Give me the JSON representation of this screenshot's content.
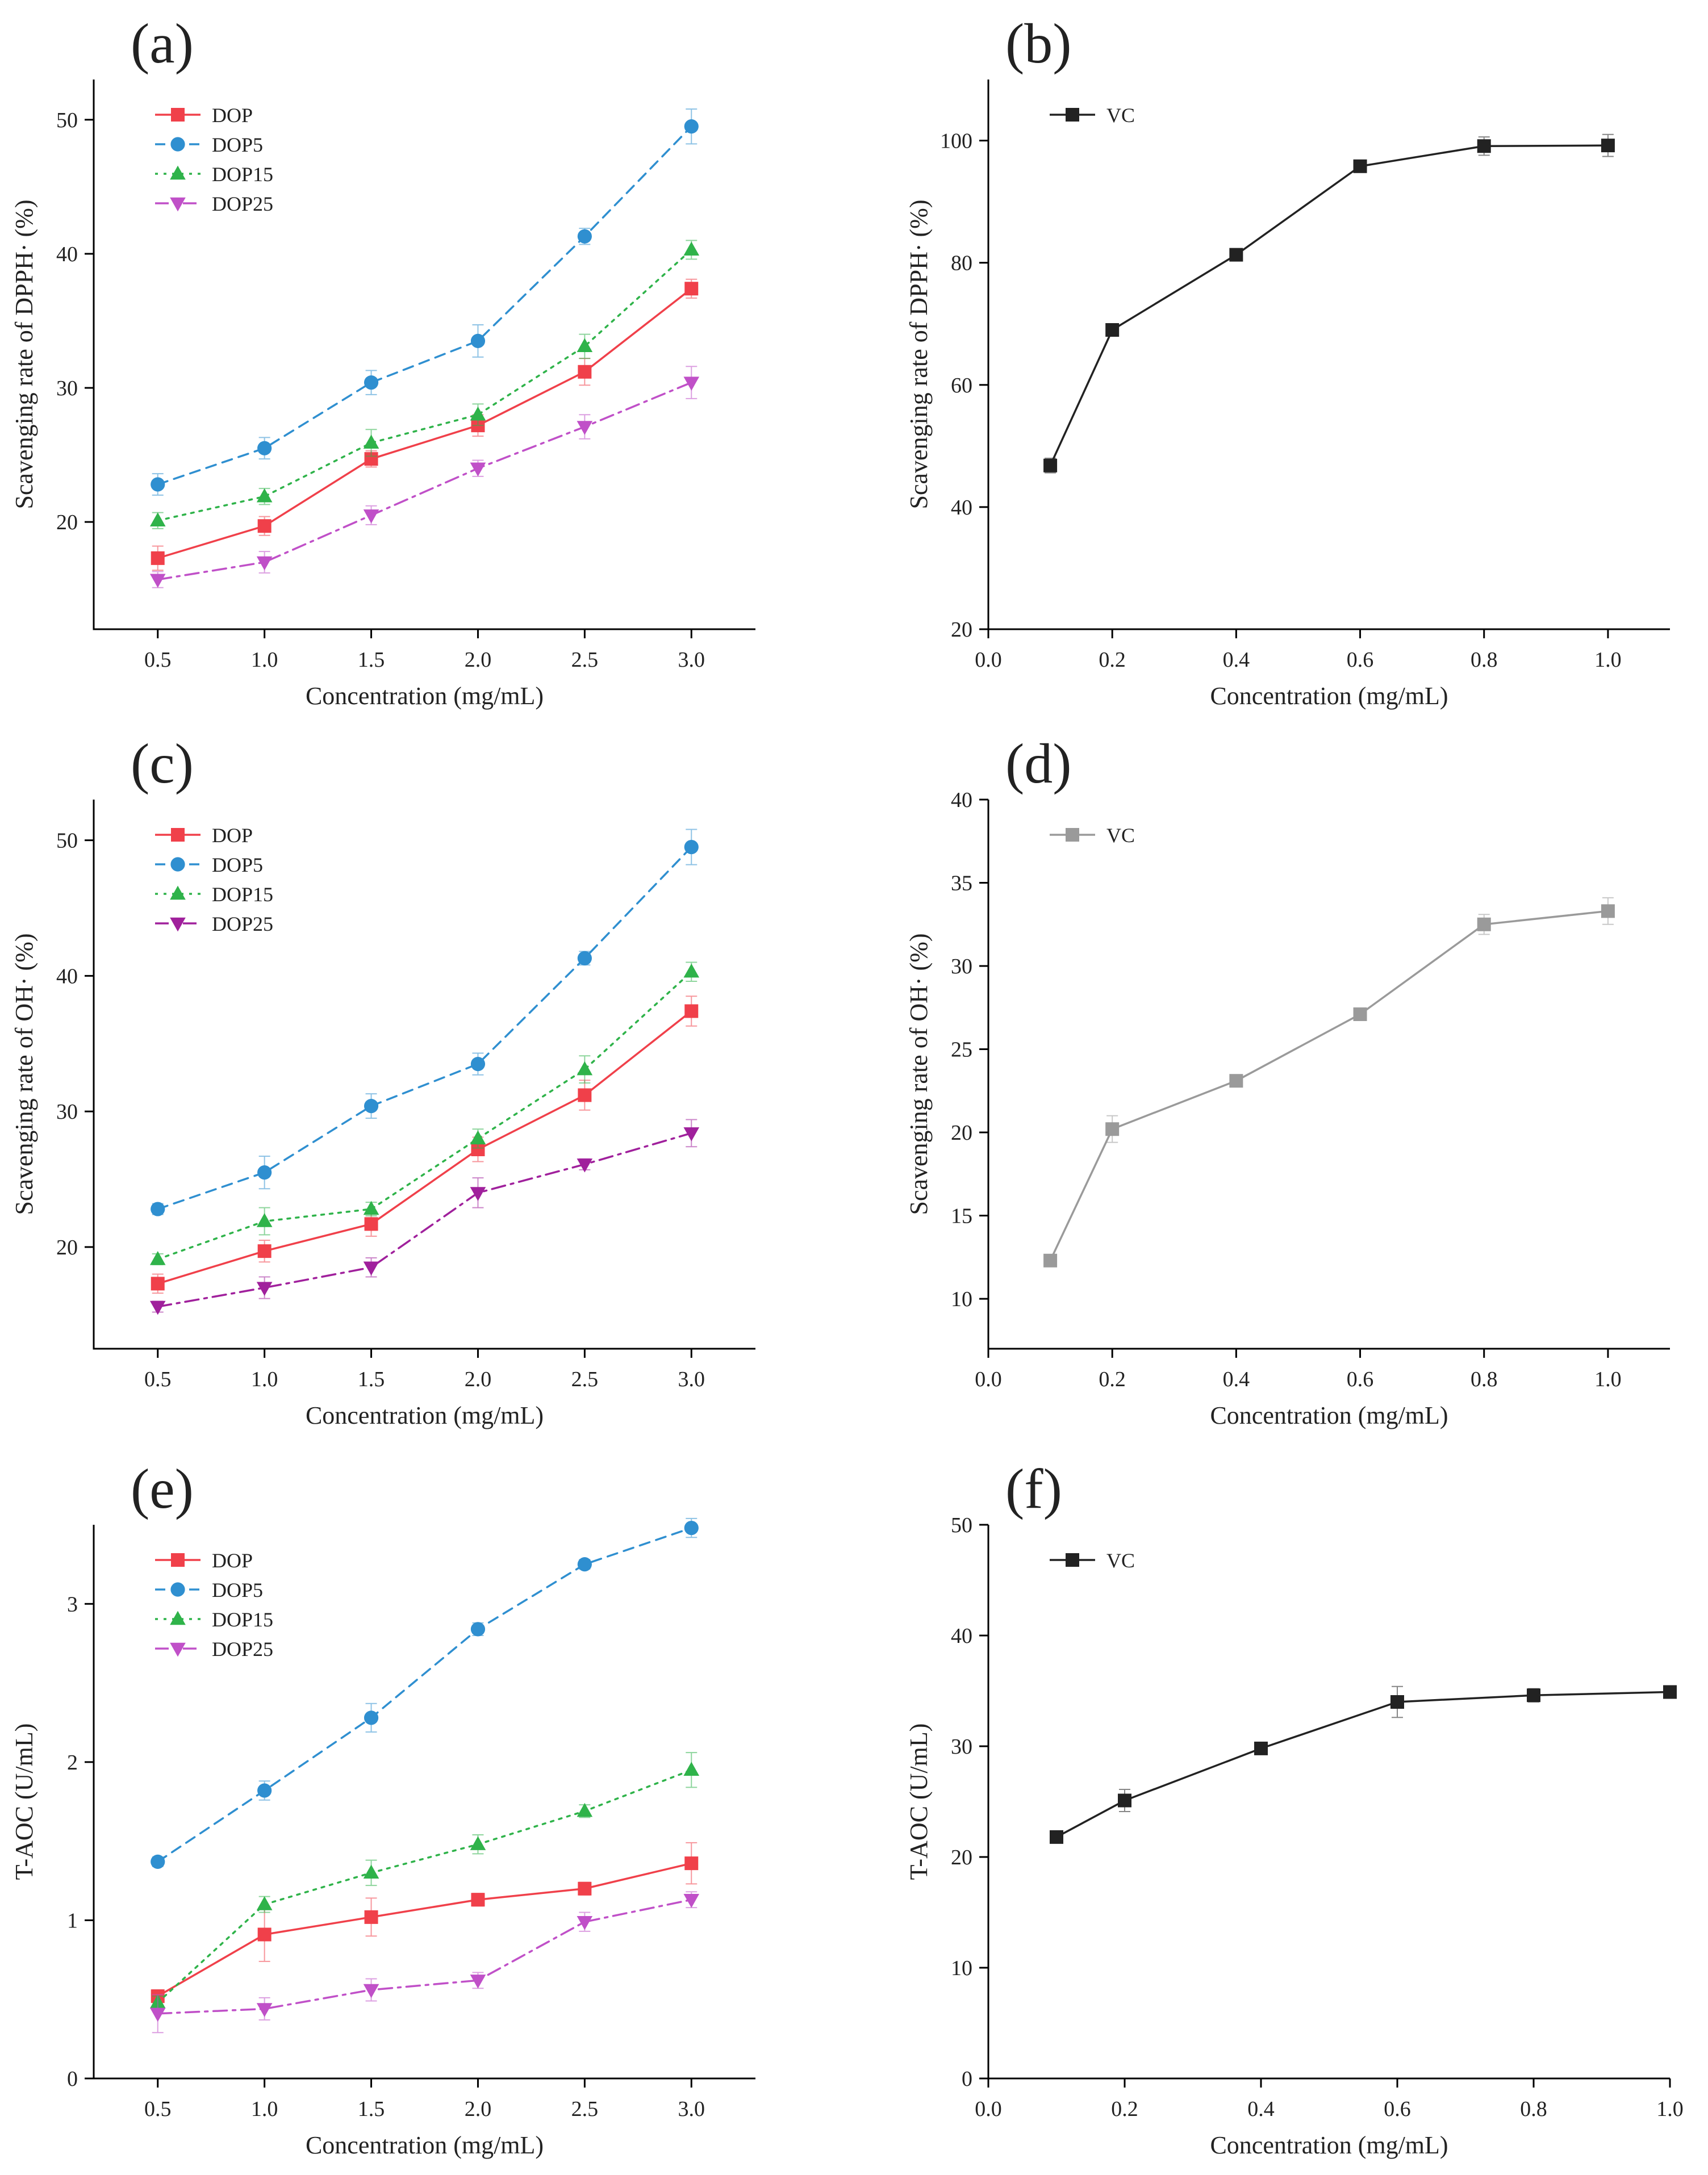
{
  "chart_data": [
    {
      "panel_label": "(a)",
      "type": "line",
      "xlabel": "Concentration (mg/mL)",
      "ylabel": "Scavenging rate of DPPH· (%)",
      "xlim": [
        0.2,
        3.3
      ],
      "ylim": [
        12,
        53
      ],
      "xticks": [
        0.5,
        1.0,
        1.5,
        2.0,
        2.5,
        3.0
      ],
      "xtick_labels": [
        "0.5",
        "1.0",
        "1.5",
        "2.0",
        "2.5",
        "3.0"
      ],
      "yticks": [
        20,
        30,
        40,
        50
      ],
      "ytick_labels": [
        "20",
        "30",
        "40",
        "50"
      ],
      "legend_position": "top-left",
      "x": [
        0.5,
        1.0,
        1.5,
        2.0,
        2.5,
        3.0
      ],
      "series": [
        {
          "name": "DOP",
          "color": "#f0404a",
          "marker": "square",
          "dash": "none",
          "values": [
            17.3,
            19.7,
            24.7,
            27.2,
            31.2,
            37.4
          ],
          "errors": [
            0.9,
            0.7,
            0.6,
            0.8,
            1.0,
            0.7
          ]
        },
        {
          "name": "DOP5",
          "color": "#2f8fd0",
          "marker": "circle",
          "dash": "dashed",
          "values": [
            22.8,
            25.5,
            30.4,
            33.5,
            41.3,
            49.5
          ],
          "errors": [
            0.8,
            0.8,
            0.9,
            1.2,
            0.6,
            1.3
          ]
        },
        {
          "name": "DOP15",
          "color": "#2fb34a",
          "marker": "triangle-up",
          "dash": "dotted",
          "values": [
            20.1,
            21.9,
            25.9,
            28.0,
            33.1,
            40.3
          ],
          "errors": [
            0.6,
            0.6,
            1.0,
            0.8,
            0.9,
            0.7
          ]
        },
        {
          "name": "DOP25",
          "color": "#c050c8",
          "marker": "triangle-down",
          "dash": "dashdot",
          "values": [
            15.7,
            17.0,
            20.5,
            24.0,
            27.1,
            30.4
          ],
          "errors": [
            0.6,
            0.8,
            0.7,
            0.6,
            0.9,
            1.2
          ]
        }
      ]
    },
    {
      "panel_label": "(b)",
      "type": "line",
      "xlabel": "Concentration (mg/mL)",
      "ylabel": "Scavenging rate of DPPH· (%)",
      "xlim": [
        0.0,
        1.1
      ],
      "ylim": [
        20,
        110
      ],
      "xticks": [
        0.0,
        0.2,
        0.4,
        0.6,
        0.8,
        1.0
      ],
      "xtick_labels": [
        "0.0",
        "0.2",
        "0.4",
        "0.6",
        "0.8",
        "1.0"
      ],
      "yticks": [
        20,
        40,
        60,
        80,
        100
      ],
      "ytick_labels": [
        "20",
        "40",
        "60",
        "80",
        "100"
      ],
      "legend_position": "top-left",
      "x": [
        0.1,
        0.2,
        0.4,
        0.6,
        0.8,
        1.0
      ],
      "series": [
        {
          "name": "VC",
          "color": "#222222",
          "marker": "square",
          "dash": "none",
          "values": [
            46.8,
            69.0,
            81.3,
            95.8,
            99.1,
            99.2
          ],
          "errors": [
            1.2,
            0.8,
            0.7,
            0.6,
            1.5,
            1.8
          ]
        }
      ]
    },
    {
      "panel_label": "(c)",
      "type": "line",
      "xlabel": "Concentration (mg/mL)",
      "ylabel": "Scavenging rate of OH· (%)",
      "xlim": [
        0.2,
        3.3
      ],
      "ylim": [
        12.5,
        53
      ],
      "xticks": [
        0.5,
        1.0,
        1.5,
        2.0,
        2.5,
        3.0
      ],
      "xtick_labels": [
        "0.5",
        "1.0",
        "1.5",
        "2.0",
        "2.5",
        "3.0"
      ],
      "yticks": [
        20,
        30,
        40,
        50
      ],
      "ytick_labels": [
        "20",
        "30",
        "40",
        "50"
      ],
      "legend_position": "top-left",
      "x": [
        0.5,
        1.0,
        1.5,
        2.0,
        2.5,
        3.0
      ],
      "series": [
        {
          "name": "DOP",
          "color": "#f0404a",
          "marker": "square",
          "dash": "none",
          "values": [
            17.3,
            19.7,
            21.7,
            27.2,
            31.2,
            37.4
          ],
          "errors": [
            0.7,
            0.8,
            0.9,
            0.9,
            1.1,
            1.1
          ]
        },
        {
          "name": "DOP5",
          "color": "#2f8fd0",
          "marker": "circle",
          "dash": "dashed",
          "values": [
            22.8,
            25.5,
            30.4,
            33.5,
            41.3,
            49.5
          ],
          "errors": [
            0.4,
            1.2,
            0.9,
            0.8,
            0.5,
            1.3
          ]
        },
        {
          "name": "DOP15",
          "color": "#2fb34a",
          "marker": "triangle-up",
          "dash": "dotted",
          "values": [
            19.1,
            21.9,
            22.8,
            28.0,
            33.1,
            40.3
          ],
          "errors": [
            0.4,
            1.0,
            0.5,
            0.7,
            1.0,
            0.7
          ]
        },
        {
          "name": "DOP25",
          "color": "#a0209c",
          "marker": "triangle-down",
          "dash": "dashdot",
          "values": [
            15.6,
            17.0,
            18.5,
            24.0,
            26.1,
            28.4
          ],
          "errors": [
            0.4,
            0.8,
            0.7,
            1.1,
            0.4,
            1.0
          ]
        }
      ]
    },
    {
      "panel_label": "(d)",
      "type": "line",
      "xlabel": "Concentration (mg/mL)",
      "ylabel": "Scavenging rate of OH· (%)",
      "xlim": [
        0.0,
        1.1
      ],
      "ylim": [
        7,
        40
      ],
      "xticks": [
        0.0,
        0.2,
        0.4,
        0.6,
        0.8,
        1.0
      ],
      "xtick_labels": [
        "0.0",
        "0.2",
        "0.4",
        "0.6",
        "0.8",
        "1.0"
      ],
      "yticks": [
        10,
        15,
        20,
        25,
        30,
        35,
        40
      ],
      "ytick_labels": [
        "10",
        "15",
        "20",
        "25",
        "30",
        "35",
        "40"
      ],
      "legend_position": "top-left",
      "x": [
        0.1,
        0.2,
        0.4,
        0.6,
        0.8,
        1.0
      ],
      "series": [
        {
          "name": "VC",
          "color": "#9a9a9a",
          "marker": "square",
          "dash": "none",
          "values": [
            12.3,
            20.2,
            23.1,
            27.1,
            32.5,
            33.3
          ],
          "errors": [
            0.3,
            0.8,
            0.3,
            0.3,
            0.6,
            0.8
          ]
        }
      ]
    },
    {
      "panel_label": "(e)",
      "type": "line",
      "xlabel": "Concentration (mg/mL)",
      "ylabel": "T-AOC (U/mL)",
      "xlim": [
        0.2,
        3.3
      ],
      "ylim": [
        0,
        3.5
      ],
      "xticks": [
        0.5,
        1.0,
        1.5,
        2.0,
        2.5,
        3.0
      ],
      "xtick_labels": [
        "0.5",
        "1.0",
        "1.5",
        "2.0",
        "2.5",
        "3.0"
      ],
      "yticks": [
        0,
        1,
        2,
        3
      ],
      "ytick_labels": [
        "0",
        "1",
        "2",
        "3"
      ],
      "legend_position": "top-left",
      "x": [
        0.5,
        1.0,
        1.5,
        2.0,
        2.5,
        3.0
      ],
      "series": [
        {
          "name": "DOP",
          "color": "#f0404a",
          "marker": "square",
          "dash": "none",
          "values": [
            0.52,
            0.91,
            1.02,
            1.13,
            1.2,
            1.36
          ],
          "errors": [
            0.04,
            0.17,
            0.12,
            0.04,
            0.04,
            0.13
          ]
        },
        {
          "name": "DOP5",
          "color": "#2f8fd0",
          "marker": "circle",
          "dash": "dashed",
          "values": [
            1.37,
            1.82,
            2.28,
            2.84,
            3.25,
            3.48
          ],
          "errors": [
            0.03,
            0.06,
            0.09,
            0.04,
            0.03,
            0.06
          ]
        },
        {
          "name": "DOP15",
          "color": "#2fb34a",
          "marker": "triangle-up",
          "dash": "dotted",
          "values": [
            0.48,
            1.1,
            1.3,
            1.48,
            1.69,
            1.95
          ],
          "errors": [
            0.04,
            0.05,
            0.08,
            0.06,
            0.04,
            0.11
          ]
        },
        {
          "name": "DOP25",
          "color": "#c050c8",
          "marker": "triangle-down",
          "dash": "dashdot",
          "values": [
            0.41,
            0.44,
            0.56,
            0.62,
            0.99,
            1.13
          ],
          "errors": [
            0.12,
            0.07,
            0.07,
            0.05,
            0.06,
            0.05
          ]
        }
      ]
    },
    {
      "panel_label": "(f)",
      "type": "line",
      "xlabel": "Concentration (mg/mL)",
      "ylabel": "T-AOC (U/mL)",
      "xlim": [
        0.0,
        1.0
      ],
      "ylim": [
        0,
        50
      ],
      "xticks": [
        0.0,
        0.2,
        0.4,
        0.6,
        0.8,
        1.0
      ],
      "xtick_labels": [
        "0.0",
        "0.2",
        "0.4",
        "0.6",
        "0.8",
        "1.0"
      ],
      "yticks": [
        0,
        10,
        20,
        30,
        40,
        50
      ],
      "ytick_labels": [
        "0",
        "10",
        "20",
        "30",
        "40",
        "50"
      ],
      "legend_position": "top-left",
      "x": [
        0.1,
        0.2,
        0.4,
        0.6,
        0.8,
        1.0
      ],
      "series": [
        {
          "name": "VC",
          "color": "#222222",
          "marker": "square",
          "dash": "none",
          "values": [
            21.8,
            25.1,
            29.8,
            34.0,
            34.6,
            34.9
          ],
          "errors": [
            0.5,
            1.0,
            0.4,
            1.4,
            0.6,
            0.5
          ]
        }
      ]
    }
  ]
}
